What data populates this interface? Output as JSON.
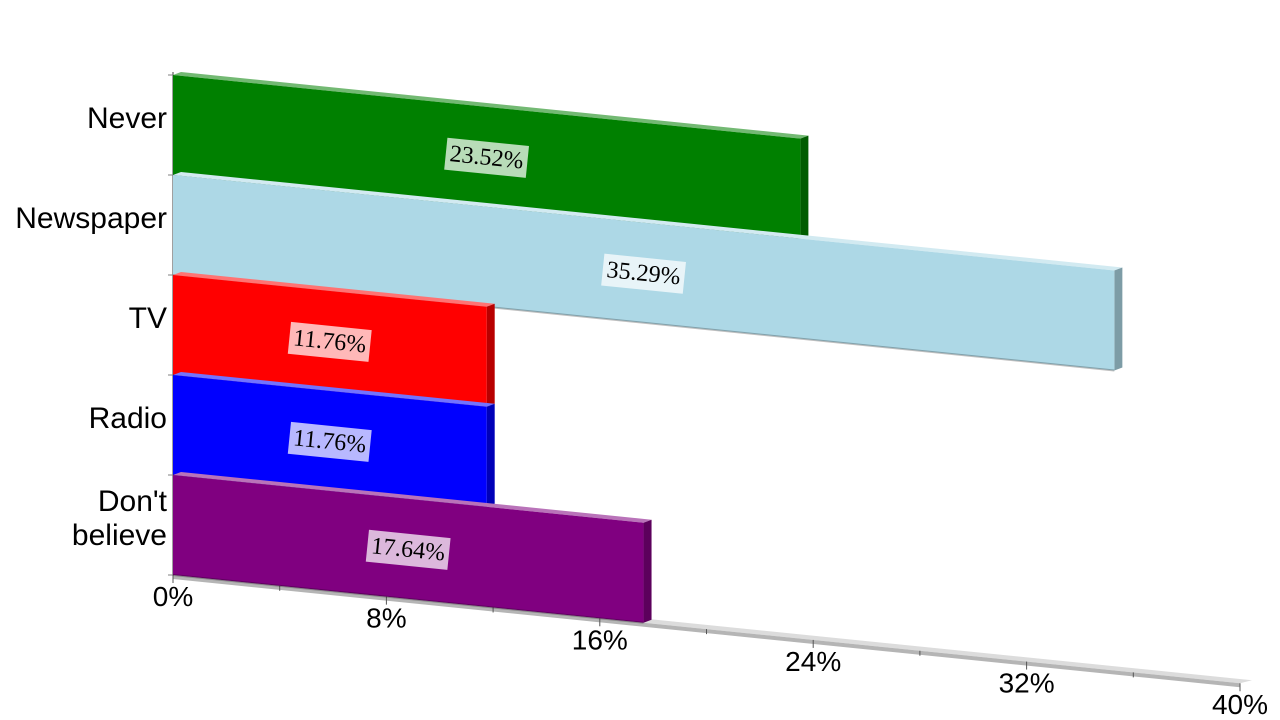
{
  "chart_data": {
    "type": "bar",
    "orientation": "horizontal",
    "three_d": true,
    "categories": [
      "Never",
      "Newspaper",
      "TV",
      "Radio",
      "Don't believe"
    ],
    "category_lines": [
      [
        "Never"
      ],
      [
        "Newspaper"
      ],
      [
        "TV"
      ],
      [
        "Radio"
      ],
      [
        "Don't",
        "believe"
      ]
    ],
    "values": [
      23.52,
      35.29,
      11.76,
      11.76,
      17.64
    ],
    "data_labels": [
      "23.52%",
      "35.29%",
      "11.76%",
      "11.76%",
      "17.64%"
    ],
    "colors": [
      "#008000",
      "#add8e6",
      "#ff0000",
      "#0000ff",
      "#800080"
    ],
    "xlim": [
      0,
      40
    ],
    "x_ticks": [
      0,
      8,
      16,
      24,
      32,
      40
    ],
    "x_tick_labels": [
      "0%",
      "8%",
      "16%",
      "24%",
      "32%",
      "40%"
    ],
    "title": "",
    "xlabel": "",
    "ylabel": "",
    "legend": "none",
    "grid": false
  }
}
